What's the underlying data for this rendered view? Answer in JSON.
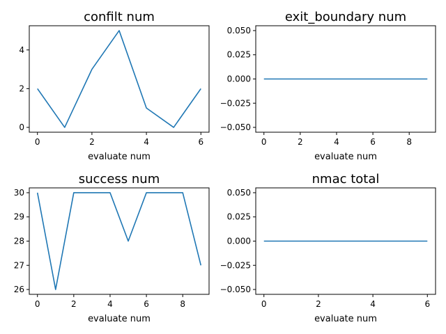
{
  "chart_data": [
    {
      "type": "line",
      "title": "confilt num",
      "xlabel": "evaluate num",
      "ylabel": "",
      "x": [
        0,
        1,
        2,
        3,
        4,
        5,
        6
      ],
      "series": [
        {
          "values": [
            2,
            0,
            3,
            5,
            1,
            0,
            2
          ]
        }
      ],
      "xlim": [
        -0.3,
        6.3
      ],
      "ylim": [
        -0.25,
        5.25
      ],
      "xticks": [
        0,
        2,
        4,
        6
      ],
      "yticks": [
        0,
        2,
        4
      ],
      "xtick_labels": [
        "0",
        "2",
        "4",
        "6"
      ],
      "ytick_labels": [
        "0",
        "2",
        "4"
      ],
      "grid": false,
      "color": "#1f77b4"
    },
    {
      "type": "line",
      "title": "exit_boundary num",
      "xlabel": "evaluate num",
      "ylabel": "",
      "x": [
        0,
        1,
        2,
        3,
        4,
        5,
        6,
        7,
        8,
        9
      ],
      "series": [
        {
          "values": [
            0,
            0,
            0,
            0,
            0,
            0,
            0,
            0,
            0,
            0
          ]
        }
      ],
      "xlim": [
        -0.45,
        9.45
      ],
      "ylim": [
        -0.055,
        0.055
      ],
      "xticks": [
        0,
        2,
        4,
        6,
        8
      ],
      "yticks": [
        0.05,
        0.025,
        0.0,
        -0.025,
        -0.05
      ],
      "xtick_labels": [
        "0",
        "2",
        "4",
        "6",
        "8"
      ],
      "ytick_labels": [
        "0.050",
        "0.025",
        "0.000",
        "−0.025",
        "−0.050"
      ],
      "grid": false,
      "color": "#1f77b4"
    },
    {
      "type": "line",
      "title": "success num",
      "xlabel": "evaluate num",
      "ylabel": "",
      "x": [
        0,
        1,
        2,
        3,
        4,
        5,
        6,
        7,
        8,
        9
      ],
      "series": [
        {
          "values": [
            30,
            26,
            30,
            30,
            30,
            28,
            30,
            30,
            30,
            27
          ]
        }
      ],
      "xlim": [
        -0.45,
        9.45
      ],
      "ylim": [
        25.8,
        30.2
      ],
      "xticks": [
        0,
        2,
        4,
        6,
        8
      ],
      "yticks": [
        26,
        27,
        28,
        29,
        30
      ],
      "xtick_labels": [
        "0",
        "2",
        "4",
        "6",
        "8"
      ],
      "ytick_labels": [
        "26",
        "27",
        "28",
        "29",
        "30"
      ],
      "grid": false,
      "color": "#1f77b4"
    },
    {
      "type": "line",
      "title": "nmac total",
      "xlabel": "evaluate num",
      "ylabel": "",
      "x": [
        0,
        1,
        2,
        3,
        4,
        5,
        6
      ],
      "series": [
        {
          "values": [
            0,
            0,
            0,
            0,
            0,
            0,
            0
          ]
        }
      ],
      "xlim": [
        -0.3,
        6.3
      ],
      "ylim": [
        -0.055,
        0.055
      ],
      "xticks": [
        0,
        2,
        4,
        6
      ],
      "yticks": [
        0.05,
        0.025,
        0.0,
        -0.025,
        -0.05
      ],
      "xtick_labels": [
        "0",
        "2",
        "4",
        "6"
      ],
      "ytick_labels": [
        "0.050",
        "0.025",
        "0.000",
        "−0.025",
        "−0.050"
      ],
      "grid": false,
      "color": "#1f77b4"
    }
  ]
}
